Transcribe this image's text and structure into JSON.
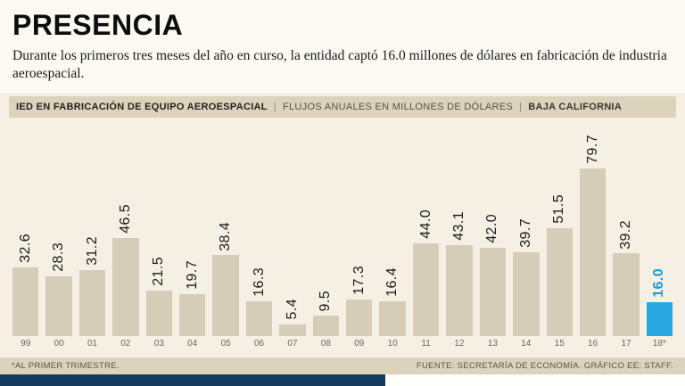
{
  "header": {
    "title": "PRESENCIA",
    "subtitle": "Durante los primeros tres meses del año en curso, la entidad captó 16.0 millones de dólares en fabricación de industria aeroespacial."
  },
  "chart_header": {
    "segment1": "IED EN FABRICACIÓN DE EQUIPO AEROESPACIAL",
    "separator": "|",
    "segment2": "FLUJOS ANUALES EN MILLONES DE DÓLARES",
    "segment3": "BAJA CALIFORNIA"
  },
  "chart_data": {
    "type": "bar",
    "title": "IED EN FABRICACIÓN DE EQUIPO AEROESPACIAL",
    "units_label": "FLUJOS ANUALES EN MILLONES DE DÓLARES",
    "region_label": "BAJA CALIFORNIA",
    "categories": [
      "99",
      "00",
      "01",
      "02",
      "03",
      "04",
      "05",
      "06",
      "07",
      "08",
      "09",
      "10",
      "11",
      "12",
      "13",
      "14",
      "15",
      "16",
      "17",
      "18*"
    ],
    "values": [
      32.6,
      28.3,
      31.2,
      46.5,
      21.5,
      19.7,
      38.4,
      16.3,
      5.4,
      9.5,
      17.3,
      16.4,
      44.0,
      43.1,
      42.0,
      39.7,
      51.5,
      79.7,
      39.2,
      16.0
    ],
    "highlight_index": 19,
    "bar_color": "#d6cdb8",
    "highlight_color": "#29a8e0",
    "highlight_label_color": "#1e9ad8",
    "ylim": [
      0,
      80
    ],
    "grid": false,
    "legend": false,
    "value_labels": "rotated-90"
  },
  "footer": {
    "note": "*AL PRIMER TRIMESTRE.",
    "source": "FUENTE: SECRETARÍA DE ECONOMÍA. GRÁFICO EE: STAFF."
  }
}
